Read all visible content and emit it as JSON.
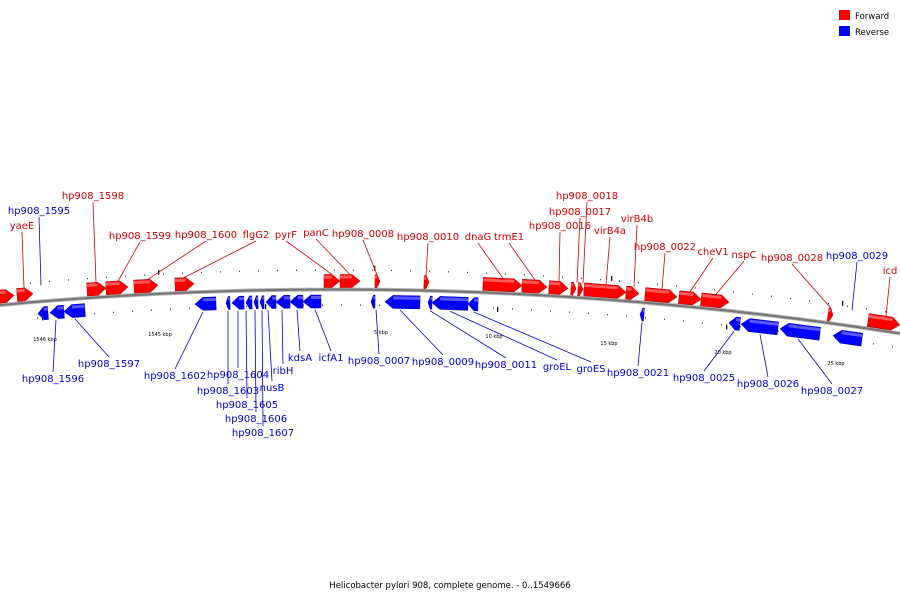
{
  "caption": "Helicobacter pylori 908, complete genome. - 0..1549666",
  "legend": [
    {
      "label": "Forward",
      "color": "#ff0000"
    },
    {
      "label": "Reverse",
      "color": "#0000ff"
    }
  ],
  "colors": {
    "forward_fill": "#ff0000",
    "forward_label": "#cc0000",
    "reverse_fill": "#0000ff",
    "reverse_label": "#0000cc",
    "backbone": "#777777"
  },
  "scale_labels": [
    "1546 kbp",
    "1545 kbp",
    "5 kbp",
    "10 kbp",
    "15 kbp",
    "20 kbp",
    "25 kbp"
  ],
  "forward_genes": [
    "yaeE",
    "hp908_1598",
    "hp908_1599",
    "hp908_1600",
    "flgG2",
    "pyrF",
    "panC",
    "hp908_0008",
    "hp908_0010",
    "dnaG",
    "trmE1",
    "hp908_0016",
    "hp908_0017",
    "hp908_0018",
    "virB4a",
    "virB4b",
    "hp908_0022",
    "cheV1",
    "nspC",
    "hp908_0028",
    "icd"
  ],
  "reverse_genes": [
    "hp908_1595",
    "hp908_1596",
    "hp908_1597",
    "hp908_1602",
    "hp908_1603",
    "hp908_1604",
    "hp908_1605",
    "hp908_1606",
    "hp908_1607",
    "nusB",
    "ribH",
    "kdsA",
    "icfA1",
    "hp908_0007",
    "hp908_0009",
    "hp908_0011",
    "groEL",
    "groES",
    "hp908_0021",
    "hp908_0025",
    "hp908_0026",
    "hp908_0027",
    "hp908_0029"
  ]
}
